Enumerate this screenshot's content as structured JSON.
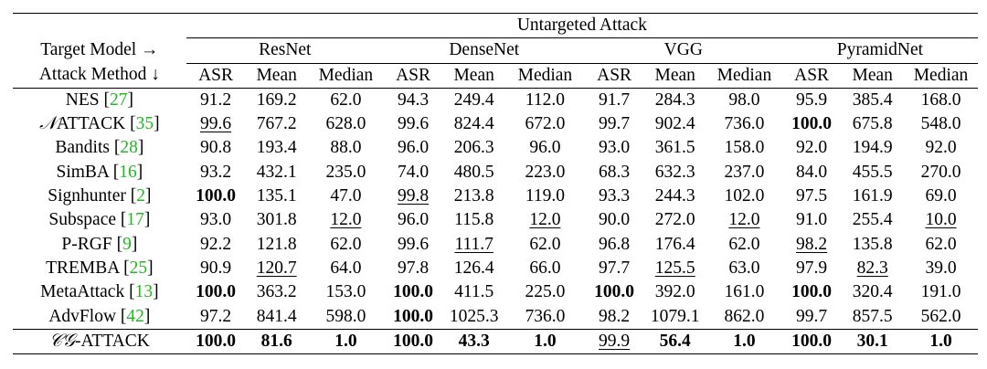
{
  "header": {
    "group_title": "Untargeted Attack",
    "target_label": "Target Model →",
    "method_label": "Attack Method ↓",
    "models": [
      "ResNet",
      "DenseNet",
      "VGG",
      "PyramidNet"
    ],
    "metrics": [
      "ASR",
      "Mean",
      "Median"
    ]
  },
  "rows": [
    {
      "method": "NES",
      "cite": "27",
      "cells": [
        {
          "v": "91.2"
        },
        {
          "v": "169.2"
        },
        {
          "v": "62.0"
        },
        {
          "v": "94.3"
        },
        {
          "v": "249.4"
        },
        {
          "v": "112.0"
        },
        {
          "v": "91.7"
        },
        {
          "v": "284.3"
        },
        {
          "v": "98.0"
        },
        {
          "v": "95.9"
        },
        {
          "v": "385.4"
        },
        {
          "v": "168.0"
        }
      ]
    },
    {
      "method_prefix": "𝒩",
      "method": "ATTACK",
      "cite": "35",
      "cells": [
        {
          "v": "99.6",
          "u": true
        },
        {
          "v": "767.2"
        },
        {
          "v": "628.0"
        },
        {
          "v": "99.6"
        },
        {
          "v": "824.4"
        },
        {
          "v": "672.0"
        },
        {
          "v": "99.7"
        },
        {
          "v": "902.4"
        },
        {
          "v": "736.0"
        },
        {
          "v": "100.0",
          "b": true
        },
        {
          "v": "675.8"
        },
        {
          "v": "548.0"
        }
      ]
    },
    {
      "method": "Bandits",
      "cite": "28",
      "cells": [
        {
          "v": "90.8"
        },
        {
          "v": "193.4"
        },
        {
          "v": "88.0"
        },
        {
          "v": "96.0"
        },
        {
          "v": "206.3"
        },
        {
          "v": "96.0"
        },
        {
          "v": "93.0"
        },
        {
          "v": "361.5"
        },
        {
          "v": "158.0"
        },
        {
          "v": "92.0"
        },
        {
          "v": "194.9"
        },
        {
          "v": "92.0"
        }
      ]
    },
    {
      "method": "SimBA",
      "cite": "16",
      "cells": [
        {
          "v": "93.2"
        },
        {
          "v": "432.1"
        },
        {
          "v": "235.0"
        },
        {
          "v": "74.0"
        },
        {
          "v": "480.5"
        },
        {
          "v": "223.0"
        },
        {
          "v": "68.3"
        },
        {
          "v": "632.3"
        },
        {
          "v": "237.0"
        },
        {
          "v": "84.0"
        },
        {
          "v": "455.5"
        },
        {
          "v": "270.0"
        }
      ]
    },
    {
      "method": "Signhunter",
      "cite": "2",
      "cells": [
        {
          "v": "100.0",
          "b": true
        },
        {
          "v": "135.1"
        },
        {
          "v": "47.0"
        },
        {
          "v": "99.8",
          "u": true
        },
        {
          "v": "213.8"
        },
        {
          "v": "119.0"
        },
        {
          "v": "93.3"
        },
        {
          "v": "244.3"
        },
        {
          "v": "102.0"
        },
        {
          "v": "97.5"
        },
        {
          "v": "161.9"
        },
        {
          "v": "69.0"
        }
      ]
    },
    {
      "method": "Subspace",
      "cite": "17",
      "cells": [
        {
          "v": "93.0"
        },
        {
          "v": "301.8"
        },
        {
          "v": "12.0",
          "u": true
        },
        {
          "v": "96.0"
        },
        {
          "v": "115.8"
        },
        {
          "v": "12.0",
          "u": true
        },
        {
          "v": "90.0"
        },
        {
          "v": "272.0"
        },
        {
          "v": "12.0",
          "u": true
        },
        {
          "v": "91.0"
        },
        {
          "v": "255.4"
        },
        {
          "v": "10.0",
          "u": true
        }
      ]
    },
    {
      "method": "P-RGF",
      "cite": "9",
      "cells": [
        {
          "v": "92.2"
        },
        {
          "v": "121.8"
        },
        {
          "v": "62.0"
        },
        {
          "v": "99.6"
        },
        {
          "v": "111.7",
          "u": true
        },
        {
          "v": "62.0"
        },
        {
          "v": "96.8"
        },
        {
          "v": "176.4"
        },
        {
          "v": "62.0"
        },
        {
          "v": "98.2",
          "u": true
        },
        {
          "v": "135.8"
        },
        {
          "v": "62.0"
        }
      ]
    },
    {
      "method": "TREMBA",
      "cite": "25",
      "cells": [
        {
          "v": "90.9"
        },
        {
          "v": "120.7",
          "u": true
        },
        {
          "v": "64.0"
        },
        {
          "v": "97.8"
        },
        {
          "v": "126.4"
        },
        {
          "v": "66.0"
        },
        {
          "v": "97.7"
        },
        {
          "v": "125.5",
          "u": true
        },
        {
          "v": "63.0"
        },
        {
          "v": "97.9"
        },
        {
          "v": "82.3",
          "u": true
        },
        {
          "v": "39.0"
        }
      ]
    },
    {
      "method": "MetaAttack",
      "cite": "13",
      "cells": [
        {
          "v": "100.0",
          "b": true
        },
        {
          "v": "363.2"
        },
        {
          "v": "153.0"
        },
        {
          "v": "100.0",
          "b": true
        },
        {
          "v": "411.5"
        },
        {
          "v": "225.0"
        },
        {
          "v": "100.0",
          "b": true
        },
        {
          "v": "392.0"
        },
        {
          "v": "161.0"
        },
        {
          "v": "100.0",
          "b": true
        },
        {
          "v": "320.4"
        },
        {
          "v": "191.0"
        }
      ]
    },
    {
      "method": "AdvFlow",
      "cite": "42",
      "cells": [
        {
          "v": "97.2"
        },
        {
          "v": "841.4"
        },
        {
          "v": "598.0"
        },
        {
          "v": "100.0",
          "b": true
        },
        {
          "v": "1025.3"
        },
        {
          "v": "736.0"
        },
        {
          "v": "98.2"
        },
        {
          "v": "1079.1"
        },
        {
          "v": "862.0"
        },
        {
          "v": "99.7"
        },
        {
          "v": "857.5"
        },
        {
          "v": "562.0"
        }
      ]
    },
    {
      "method_prefix": "𝒞𝒢",
      "method": "-ATTACK",
      "cite": "",
      "cells": [
        {
          "v": "100.0",
          "b": true
        },
        {
          "v": "81.6",
          "b": true
        },
        {
          "v": "1.0",
          "b": true
        },
        {
          "v": "100.0",
          "b": true
        },
        {
          "v": "43.3",
          "b": true
        },
        {
          "v": "1.0",
          "b": true
        },
        {
          "v": "99.9",
          "u": true
        },
        {
          "v": "56.4",
          "b": true
        },
        {
          "v": "1.0",
          "b": true
        },
        {
          "v": "100.0",
          "b": true
        },
        {
          "v": "30.1",
          "b": true
        },
        {
          "v": "1.0",
          "b": true
        }
      ]
    }
  ]
}
